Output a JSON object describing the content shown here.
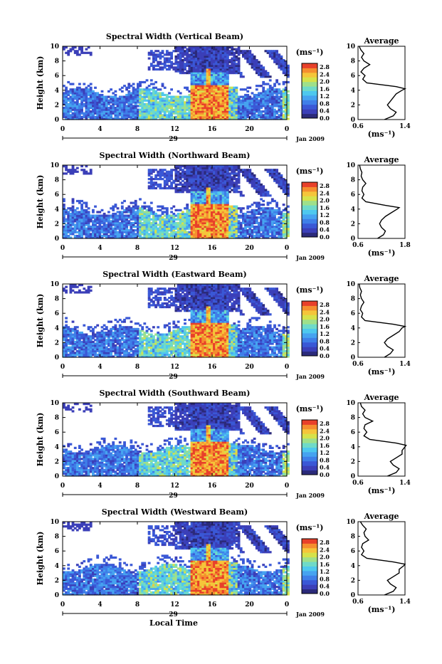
{
  "figure": {
    "y_label": "Height (km)",
    "x_label": "Local Time",
    "date_label": "Jan 2009",
    "day_label": "29",
    "unit_label": "(ms⁻¹)",
    "average_title": "Average",
    "average_unit_label": "(ms⁻¹)"
  },
  "colors": {
    "scale": [
      "#2b2a7a",
      "#3b3fb8",
      "#3a58d6",
      "#3f7fe8",
      "#46a3f0",
      "#4ec8ee",
      "#6fdac8",
      "#9fe08a",
      "#d6e24a",
      "#f5c53a",
      "#f58e2f",
      "#e8402a"
    ],
    "background": "#ffffff",
    "axis": "#000000"
  },
  "chart_data": [
    {
      "type": "heatmap",
      "title": "Spectral Width (Vertical Beam)",
      "xlabel": "Local Time",
      "ylabel": "Height (km)",
      "xlim": [
        0,
        24
      ],
      "ylim": [
        0,
        10
      ],
      "x_ticks": [
        "0",
        "4",
        "8",
        "12",
        "16",
        "20",
        "0"
      ],
      "y_ticks": [
        "0",
        "2",
        "4",
        "6",
        "8",
        "10"
      ],
      "colorbar": {
        "ticks": [
          "0.0",
          "0.4",
          "0.8",
          "1.2",
          "1.6",
          "2.0",
          "2.4",
          "2.8"
        ],
        "range": [
          0,
          3.0
        ]
      },
      "average_profile": {
        "xlim": [
          0.6,
          1.4
        ],
        "x_ticks": [
          "0.6",
          "1.4"
        ],
        "heights": [
          0,
          0.5,
          1,
          1.5,
          2,
          2.5,
          3,
          3.5,
          4,
          4.2,
          4.5,
          5,
          5.5,
          6,
          6.5,
          7,
          7.5,
          8,
          8.5,
          9,
          9.5,
          10
        ],
        "values": [
          1.05,
          1.2,
          1.25,
          1.15,
          1.1,
          1.15,
          1.2,
          1.25,
          1.35,
          1.4,
          1.25,
          0.75,
          0.68,
          0.72,
          0.65,
          0.7,
          0.8,
          0.7,
          0.66,
          0.7,
          0.65,
          0.62
        ]
      }
    },
    {
      "type": "heatmap",
      "title": "Spectral Width (Northward Beam)",
      "xlabel": "Local Time",
      "ylabel": "Height (km)",
      "xlim": [
        0,
        24
      ],
      "ylim": [
        0,
        10
      ],
      "x_ticks": [
        "0",
        "4",
        "8",
        "12",
        "16",
        "20",
        "0"
      ],
      "y_ticks": [
        "0",
        "2",
        "4",
        "6",
        "8",
        "10"
      ],
      "colorbar": {
        "ticks": [
          "0.0",
          "0.4",
          "0.8",
          "1.2",
          "1.6",
          "2.0",
          "2.4",
          "2.8"
        ],
        "range": [
          0,
          3.0
        ]
      },
      "average_profile": {
        "xlim": [
          0.6,
          1.8
        ],
        "x_ticks": [
          "0.6",
          "1.8"
        ],
        "heights": [
          0,
          0.5,
          1,
          1.5,
          2,
          2.5,
          3,
          3.5,
          4,
          4.2,
          4.5,
          5,
          5.5,
          6,
          6.5,
          7,
          7.5,
          8,
          8.5,
          9,
          9.5,
          10
        ],
        "values": [
          1.1,
          1.25,
          1.3,
          1.2,
          1.15,
          1.2,
          1.3,
          1.45,
          1.6,
          1.65,
          1.3,
          0.8,
          0.7,
          0.75,
          0.7,
          0.72,
          0.8,
          0.72,
          0.68,
          0.7,
          0.66,
          0.64
        ]
      }
    },
    {
      "type": "heatmap",
      "title": "Spectral Width (Eastward Beam)",
      "xlabel": "Local Time",
      "ylabel": "Height (km)",
      "xlim": [
        0,
        24
      ],
      "ylim": [
        0,
        10
      ],
      "x_ticks": [
        "0",
        "4",
        "8",
        "12",
        "16",
        "20",
        "0"
      ],
      "y_ticks": [
        "0",
        "2",
        "4",
        "6",
        "8",
        "10"
      ],
      "colorbar": {
        "ticks": [
          "0.0",
          "0.4",
          "0.8",
          "1.2",
          "1.6",
          "2.0",
          "2.4",
          "2.8"
        ],
        "range": [
          0,
          3.0
        ]
      },
      "average_profile": {
        "xlim": [
          0.6,
          1.4
        ],
        "x_ticks": [
          "0.6",
          "1.4"
        ],
        "heights": [
          0,
          0.5,
          1,
          1.5,
          2,
          2.5,
          3,
          3.5,
          4,
          4.2,
          4.5,
          5,
          5.5,
          6,
          6.5,
          7,
          7.5,
          8,
          8.5,
          9,
          9.5,
          10
        ],
        "values": [
          1.05,
          1.15,
          1.2,
          1.1,
          1.05,
          1.1,
          1.2,
          1.3,
          1.35,
          1.4,
          1.2,
          0.72,
          0.66,
          0.68,
          0.64,
          0.66,
          0.7,
          0.66,
          0.64,
          0.66,
          0.63,
          0.62
        ]
      }
    },
    {
      "type": "heatmap",
      "title": "Spectral Width (Southward Beam)",
      "xlabel": "Local Time",
      "ylabel": "Height (km)",
      "xlim": [
        0,
        24
      ],
      "ylim": [
        0,
        10
      ],
      "x_ticks": [
        "0",
        "4",
        "8",
        "12",
        "16",
        "20",
        "0"
      ],
      "y_ticks": [
        "0",
        "2",
        "4",
        "6",
        "8",
        "10"
      ],
      "colorbar": {
        "ticks": [
          "0.0",
          "0.4",
          "0.8",
          "1.2",
          "1.6",
          "2.0",
          "2.4",
          "2.8"
        ],
        "range": [
          0,
          3.0
        ]
      },
      "average_profile": {
        "xlim": [
          0.6,
          1.4
        ],
        "x_ticks": [
          "0.6",
          "1.4"
        ],
        "heights": [
          0,
          0.5,
          1,
          1.5,
          2,
          2.5,
          3,
          3.5,
          4,
          4.2,
          4.5,
          5,
          5.5,
          6,
          6.5,
          7,
          7.5,
          8,
          8.5,
          9,
          9.5,
          10
        ],
        "values": [
          1.1,
          1.25,
          1.3,
          1.2,
          1.15,
          1.25,
          1.35,
          1.35,
          1.4,
          1.42,
          1.25,
          0.8,
          0.7,
          0.75,
          0.7,
          0.72,
          0.85,
          0.72,
          0.68,
          0.72,
          0.66,
          0.64
        ]
      }
    },
    {
      "type": "heatmap",
      "title": "Spectral Width (Westward Beam)",
      "xlabel": "Local Time",
      "ylabel": "Height (km)",
      "xlim": [
        0,
        24
      ],
      "ylim": [
        0,
        10
      ],
      "x_ticks": [
        "0",
        "4",
        "8",
        "12",
        "16",
        "20",
        "0"
      ],
      "y_ticks": [
        "0",
        "2",
        "4",
        "6",
        "8",
        "10"
      ],
      "colorbar": {
        "ticks": [
          "0.0",
          "0.4",
          "0.8",
          "1.2",
          "1.6",
          "2.0",
          "2.4",
          "2.8"
        ],
        "range": [
          0,
          3.0
        ]
      },
      "average_profile": {
        "xlim": [
          0.6,
          1.4
        ],
        "x_ticks": [
          "0.6",
          "1.4"
        ],
        "heights": [
          0,
          0.5,
          1,
          1.5,
          2,
          2.5,
          3,
          3.5,
          4,
          4.2,
          4.5,
          5,
          5.5,
          6,
          6.5,
          7,
          7.5,
          8,
          8.5,
          9,
          9.5,
          10
        ],
        "values": [
          1.05,
          1.2,
          1.25,
          1.15,
          1.1,
          1.2,
          1.3,
          1.3,
          1.38,
          1.4,
          1.2,
          0.75,
          0.66,
          0.7,
          0.66,
          0.68,
          0.78,
          0.72,
          0.7,
          0.74,
          0.68,
          0.64
        ]
      }
    }
  ]
}
